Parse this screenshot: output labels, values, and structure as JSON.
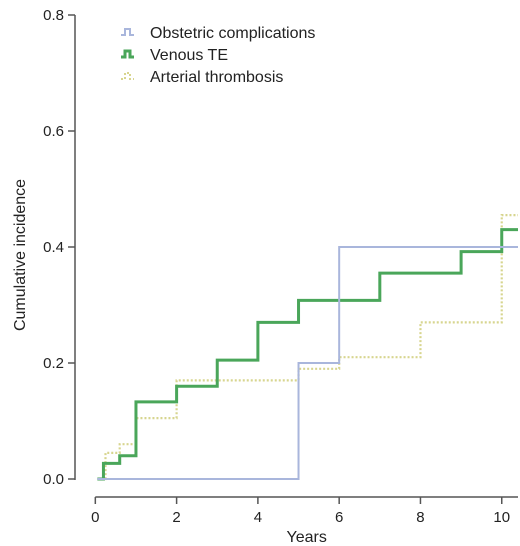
{
  "chart_data": {
    "type": "line",
    "step": true,
    "xlabel": "Years",
    "ylabel": "Cumulative incidence",
    "xlim": [
      -0.5,
      10.4
    ],
    "ylim": [
      0,
      0.8
    ],
    "x_ticks": [
      0,
      2,
      4,
      6,
      8,
      10
    ],
    "y_ticks": [
      0.0,
      0.2,
      0.4,
      0.6,
      0.8
    ],
    "y_tick_labels": [
      "0.0",
      "0.2",
      "0.4",
      "0.6",
      "0.8"
    ],
    "legend_position": "top-left",
    "series": [
      {
        "name": "Obstetric complications",
        "color": "#a9b6dc",
        "style": "solid",
        "x": [
          0.05,
          5.0,
          6.0,
          10.0,
          10.4
        ],
        "y": [
          0.0,
          0.2,
          0.4,
          0.4,
          0.4
        ]
      },
      {
        "name": "Venous TE",
        "color": "#4aa65a",
        "style": "solid",
        "x": [
          0.05,
          0.2,
          0.6,
          1.0,
          2.0,
          3.0,
          4.0,
          5.0,
          7.0,
          9.0,
          10.0,
          10.4
        ],
        "y": [
          0.0,
          0.027,
          0.04,
          0.133,
          0.16,
          0.205,
          0.27,
          0.308,
          0.355,
          0.392,
          0.43,
          0.43
        ]
      },
      {
        "name": "Arterial thrombosis",
        "color": "#d7d58f",
        "style": "dotted",
        "x": [
          0.05,
          0.25,
          0.6,
          1.0,
          2.0,
          5.0,
          6.0,
          8.0,
          10.0,
          10.4
        ],
        "y": [
          0.0,
          0.045,
          0.06,
          0.105,
          0.17,
          0.19,
          0.21,
          0.27,
          0.455,
          0.455
        ]
      }
    ]
  }
}
